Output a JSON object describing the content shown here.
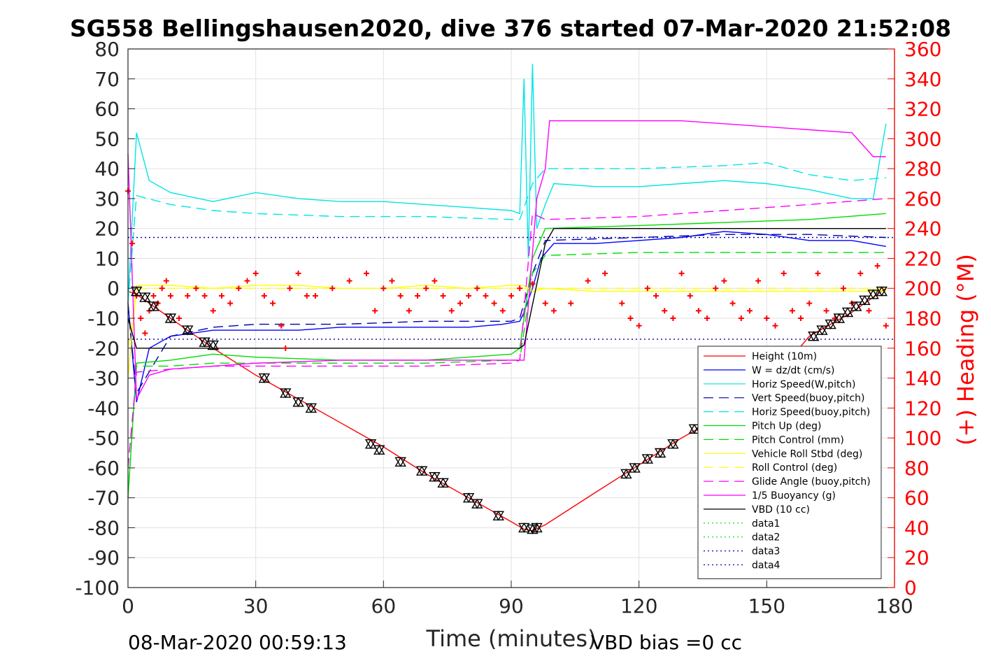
{
  "chart_data": {
    "type": "line",
    "title": "SG558 Bellingshausen2020, dive 376 started 07-Mar-2020 21:52:08",
    "xlabel": "Time (minutes)",
    "ylabel_right": "(+) Heading (°M)",
    "footer_left": "08-Mar-2020 00:59:13",
    "footer_right": "VBD bias =0 cc",
    "xlim": [
      0,
      180
    ],
    "ylim": [
      -100,
      80
    ],
    "ylim_right": [
      0,
      360
    ],
    "x_ticks": [
      "0",
      "30",
      "60",
      "90",
      "120",
      "150",
      "180"
    ],
    "y_ticks": [
      "80",
      "70",
      "60",
      "50",
      "40",
      "30",
      "20",
      "10",
      "0",
      "-10",
      "-20",
      "-30",
      "-40",
      "-50",
      "-60",
      "-70",
      "-80",
      "-90",
      "-100"
    ],
    "y_ticks_right": [
      "360",
      "340",
      "320",
      "300",
      "280",
      "260",
      "240",
      "220",
      "200",
      "180",
      "160",
      "140",
      "120",
      "100",
      "80",
      "60",
      "40",
      "20",
      "0"
    ],
    "grid": true,
    "legend_position": "bottom-right",
    "series": [
      {
        "name": "Height (10m)",
        "color": "#ff0000",
        "style": "solid",
        "x": [
          0,
          2,
          10,
          20,
          30,
          40,
          50,
          60,
          70,
          80,
          90,
          93,
          95,
          98,
          110,
          120,
          130,
          140,
          150,
          160,
          170,
          178
        ],
        "y": [
          -1,
          -2,
          -10,
          -20,
          -29,
          -37,
          -45,
          -53,
          -62,
          -70,
          -78,
          -80.5,
          -81,
          -79,
          -68,
          -59,
          -50,
          -42,
          -33,
          -16,
          -8,
          0
        ]
      },
      {
        "name": "W = dz/dt (cm/s)",
        "color": "#0000ff",
        "style": "solid",
        "x": [
          0,
          2,
          5,
          10,
          20,
          30,
          40,
          50,
          60,
          70,
          80,
          88,
          92,
          93,
          95,
          97,
          100,
          110,
          120,
          130,
          140,
          150,
          160,
          170,
          178
        ],
        "y": [
          -5,
          -38,
          -20,
          -16,
          -14,
          -14,
          -14,
          -13,
          -13,
          -13,
          -13,
          -12,
          -11,
          -8,
          0,
          10,
          15,
          15,
          16,
          17,
          19,
          18,
          16,
          16,
          14
        ]
      },
      {
        "name": "Horiz Speed(W,pitch)",
        "color": "#00e5e5",
        "style": "solid",
        "x": [
          0,
          2,
          5,
          10,
          20,
          30,
          40,
          50,
          60,
          70,
          80,
          90,
          92,
          93,
          94,
          95,
          96,
          98,
          100,
          110,
          120,
          130,
          140,
          150,
          160,
          170,
          175,
          178
        ],
        "y": [
          -5,
          52,
          36,
          32,
          29,
          32,
          30,
          29,
          29,
          28,
          27,
          26,
          25,
          70,
          10,
          75,
          20,
          28,
          35,
          34,
          34,
          35,
          36,
          35,
          33,
          30,
          30,
          55
        ]
      },
      {
        "name": "Vert Speed(buoy,pitch)",
        "color": "#0000aa",
        "style": "dashed",
        "x": [
          0,
          2,
          10,
          20,
          30,
          50,
          70,
          90,
          92,
          95,
          98,
          120,
          140,
          160,
          178
        ],
        "y": [
          -5,
          -35,
          -16,
          -13,
          -12,
          -12,
          -11,
          -11,
          -10,
          5,
          16,
          17,
          18,
          18,
          17
        ]
      },
      {
        "name": "Horiz Speed(buoy,pitch)",
        "color": "#00e5e5",
        "style": "dashed",
        "x": [
          0,
          2,
          10,
          20,
          30,
          50,
          70,
          90,
          92,
          95,
          98,
          120,
          140,
          150,
          160,
          170,
          178
        ],
        "y": [
          -5,
          31,
          28,
          26,
          25,
          24,
          24,
          23,
          23,
          35,
          40,
          40,
          41,
          42,
          38,
          36,
          37
        ]
      },
      {
        "name": "Pitch Up (deg)",
        "color": "#00dd00",
        "style": "solid",
        "x": [
          0,
          2,
          10,
          20,
          30,
          50,
          70,
          90,
          92,
          95,
          98,
          120,
          140,
          160,
          178
        ],
        "y": [
          -70,
          -25,
          -24,
          -22,
          -23,
          -24,
          -24,
          -22,
          -20,
          10,
          20,
          21,
          22,
          23,
          25
        ]
      },
      {
        "name": "Pitch Control (mm)",
        "color": "#00dd00",
        "style": "dashed",
        "x": [
          0,
          2,
          10,
          20,
          30,
          50,
          70,
          90,
          92,
          95,
          98,
          120,
          140,
          160,
          178
        ],
        "y": [
          -70,
          -26,
          -26,
          -25,
          -25,
          -25,
          -25,
          -24,
          -24,
          5,
          11,
          12,
          12,
          12,
          12
        ]
      },
      {
        "name": "Vehicle Roll Stbd (deg)",
        "color": "#ffff00",
        "style": "solid",
        "x": [
          0,
          2,
          10,
          20,
          30,
          40,
          50,
          60,
          70,
          80,
          90,
          93,
          95,
          98,
          110,
          120,
          130,
          140,
          150,
          160,
          170,
          178
        ],
        "y": [
          -30,
          1,
          1,
          0,
          1,
          1,
          0,
          0,
          1,
          0,
          1,
          1,
          -1,
          0,
          -1,
          -1,
          -1,
          -1,
          -1,
          -1,
          -1,
          -1
        ]
      },
      {
        "name": "Roll Control (deg)",
        "color": "#ffff00",
        "style": "dashed",
        "x": [
          0,
          2,
          10,
          20,
          30,
          40,
          50,
          60,
          70,
          80,
          90,
          93,
          95,
          98,
          110,
          120,
          130,
          140,
          150,
          160,
          170,
          178
        ],
        "y": [
          -20,
          0,
          0,
          0,
          0,
          0,
          0,
          0,
          0,
          0,
          0,
          0,
          0,
          0,
          0,
          0,
          0,
          0,
          0,
          0,
          0,
          0
        ]
      },
      {
        "name": "Glide Angle (buoy,pitch)",
        "color": "#ff00ff",
        "style": "dashed",
        "x": [
          0,
          2,
          10,
          20,
          30,
          50,
          70,
          90,
          92,
          95,
          98,
          120,
          140,
          160,
          178
        ],
        "y": [
          -60,
          -28,
          -27,
          -26,
          -26,
          -26,
          -26,
          -25,
          -24,
          25,
          23,
          24,
          26,
          28,
          30
        ]
      },
      {
        "name": "1/5 Buoyancy (g)",
        "color": "#ff00ff",
        "style": "solid",
        "x": [
          0,
          2,
          5,
          10,
          20,
          30,
          50,
          70,
          92,
          93,
          96,
          98,
          99,
          110,
          130,
          150,
          170,
          175,
          178
        ],
        "y": [
          45,
          -37,
          -29,
          -27,
          -26,
          -25,
          -24,
          -24,
          -24,
          -24,
          30,
          40,
          56,
          56,
          56,
          54,
          52,
          44,
          44
        ]
      },
      {
        "name": "VBD (10 cc)",
        "color": "#000000",
        "style": "solid",
        "x": [
          0,
          2,
          92,
          93,
          98,
          100,
          178
        ],
        "y": [
          -10,
          -20,
          -20,
          -19,
          15,
          20,
          20
        ]
      },
      {
        "name": "data1",
        "color": "#00dd00",
        "style": "dotted",
        "x": [],
        "y": []
      },
      {
        "name": "data2",
        "color": "#00dd00",
        "style": "dotted",
        "x": [],
        "y": []
      },
      {
        "name": "data3",
        "color": "#0000aa",
        "style": "dotted",
        "x": [
          0,
          180
        ],
        "y": [
          17,
          17
        ]
      },
      {
        "name": "data4",
        "color": "#0000aa",
        "style": "dotted",
        "x": [
          0,
          180
        ],
        "y": [
          -17,
          -17
        ]
      }
    ],
    "heading_markers": {
      "axis": "right",
      "color": "#ff0000",
      "marker": "plus",
      "x": [
        0,
        1,
        2,
        3,
        4,
        5,
        6,
        7,
        8,
        9,
        10,
        12,
        14,
        16,
        18,
        20,
        22,
        24,
        26,
        28,
        30,
        32,
        34,
        36,
        37,
        38,
        40,
        42,
        44,
        48,
        52,
        56,
        58,
        60,
        62,
        64,
        66,
        68,
        70,
        72,
        74,
        76,
        78,
        80,
        82,
        84,
        86,
        88,
        90,
        92,
        95,
        98,
        100,
        104,
        108,
        112,
        116,
        118,
        120,
        122,
        124,
        126,
        128,
        130,
        132,
        134,
        136,
        138,
        140,
        142,
        144,
        146,
        148,
        150,
        152,
        154,
        156,
        158,
        160,
        162,
        164,
        166,
        168,
        170,
        172,
        174,
        176,
        178
      ],
      "y": [
        265,
        230,
        195,
        180,
        170,
        185,
        195,
        190,
        200,
        205,
        195,
        180,
        195,
        200,
        195,
        185,
        195,
        190,
        200,
        205,
        210,
        195,
        190,
        175,
        160,
        200,
        210,
        195,
        195,
        200,
        205,
        210,
        185,
        200,
        205,
        195,
        185,
        195,
        200,
        205,
        195,
        185,
        190,
        195,
        200,
        195,
        190,
        185,
        195,
        200,
        203,
        190,
        185,
        190,
        205,
        210,
        190,
        180,
        175,
        200,
        195,
        185,
        180,
        210,
        195,
        185,
        180,
        200,
        205,
        190,
        180,
        185,
        205,
        180,
        175,
        210,
        185,
        180,
        190,
        210,
        185,
        180,
        200,
        190,
        210,
        185,
        215,
        175
      ]
    },
    "dive_markers": {
      "color": "#000000",
      "marker": "triangle-pair",
      "x": [
        2,
        4,
        6,
        10,
        14,
        18,
        20,
        32,
        37,
        40,
        43,
        57,
        59,
        64,
        69,
        72,
        74,
        80,
        82,
        87,
        93,
        95,
        96,
        117,
        119,
        122,
        125,
        128,
        133,
        161,
        163,
        165,
        167,
        169,
        171,
        173,
        175,
        177
      ],
      "y": [
        -1,
        -3,
        -6,
        -10,
        -14,
        -18,
        -19,
        -30,
        -35,
        -38,
        -40,
        -52,
        -54,
        -58,
        -61,
        -63,
        -65,
        -70,
        -72,
        -76,
        -80,
        -80.5,
        -80,
        -62,
        -60,
        -57,
        -55,
        -52,
        -47,
        -16,
        -14,
        -12,
        -10,
        -8,
        -6,
        -4,
        -2,
        -1
      ]
    }
  }
}
